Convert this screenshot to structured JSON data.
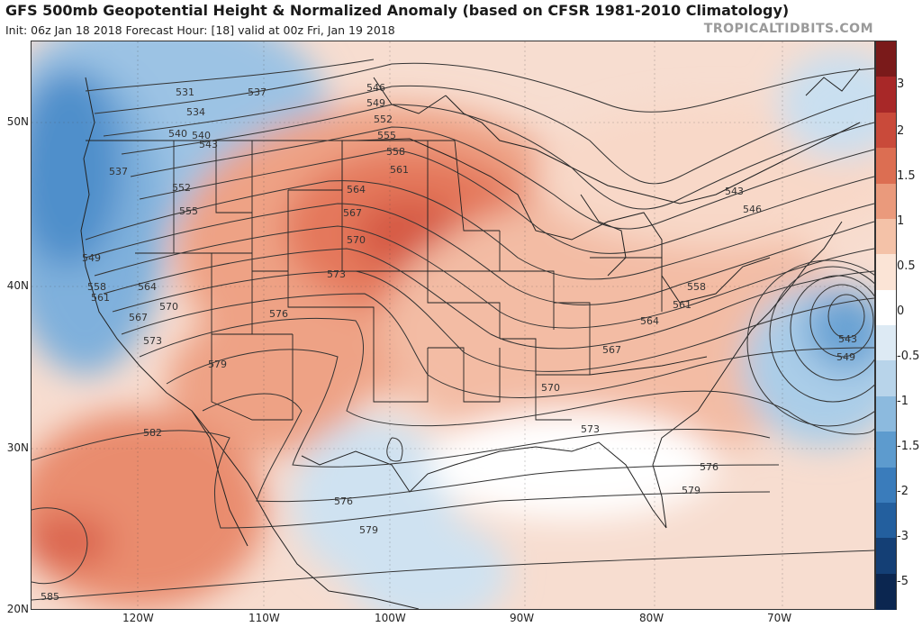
{
  "header": {
    "title": "GFS 500mb Geopotential Height & Normalized Anomaly (based on CFSR 1981-2010 Climatology)",
    "subtitle": "Init: 06z Jan 18 2018   Forecast Hour: [18]   valid at 00z Fri, Jan 19 2018",
    "brand": "TROPICALTIDBITS.COM"
  },
  "map": {
    "lat_labels": [
      "50N",
      "40N",
      "30N",
      "20N"
    ],
    "lon_labels": [
      "120W",
      "110W",
      "100W",
      "90W",
      "80W",
      "70W"
    ],
    "contour_labels": [
      "531",
      "534",
      "537",
      "540",
      "543",
      "546",
      "549",
      "552",
      "555",
      "558",
      "561",
      "564",
      "567",
      "570",
      "573",
      "576",
      "579",
      "582",
      "585",
      "537",
      "540",
      "543",
      "546",
      "549",
      "552",
      "555",
      "558",
      "561",
      "564",
      "567",
      "570",
      "573",
      "576",
      "579",
      "549",
      "543",
      "558",
      "561",
      "564",
      "567",
      "570",
      "573",
      "576",
      "579"
    ],
    "colors": {
      "anomaly_positive": "#e07050",
      "anomaly_negative": "#4a8cc8",
      "land_outline": "#222222",
      "contour": "#333333"
    }
  },
  "colorbar": {
    "ticks": [
      "3",
      "2",
      "1.5",
      "1",
      "0.5",
      "0",
      "-0.5",
      "-1",
      "-1.5",
      "-2",
      "-3",
      "-5"
    ],
    "colors": [
      "#7a1a1a",
      "#a82828",
      "#c94a3a",
      "#dc6e52",
      "#ea9a7c",
      "#f4c2a8",
      "#fbe4d6",
      "#ffffff",
      "#ddeaf4",
      "#b8d4ea",
      "#8cbade",
      "#5d9bce",
      "#3a7cbb",
      "#235f9e",
      "#143f75",
      "#0b2650"
    ]
  }
}
